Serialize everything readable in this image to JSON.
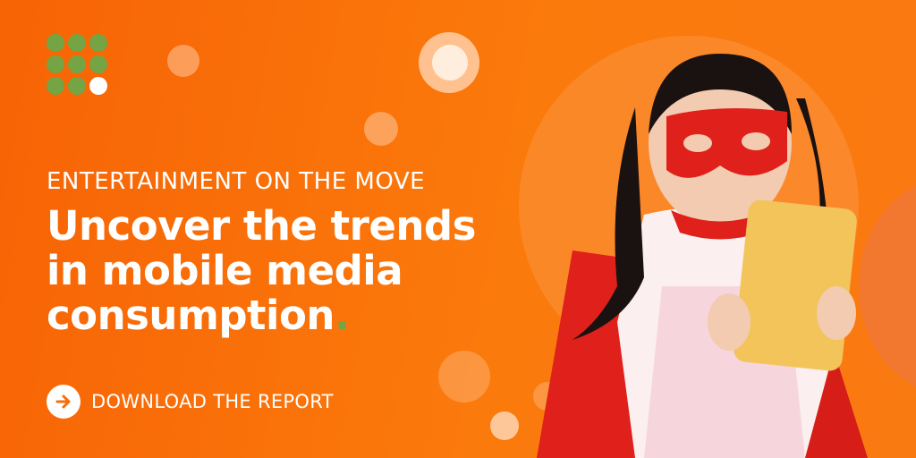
{
  "kicker": "ENTERTAINMENT ON THE MOVE",
  "headline": {
    "line1": "Uncover the trends",
    "line2": "in mobile media",
    "line3": "consumption",
    "period": "."
  },
  "cta": {
    "label": "DOWNLOAD THE REPORT",
    "icon": "arrow-right-circle-icon"
  },
  "logo": {
    "icon": "dot-grid-logo"
  },
  "photo": {
    "subject": "girl-in-superhero-mask-with-phone"
  },
  "colors": {
    "background": "#f86e08",
    "accent_green": "#74a443",
    "text": "#ffffff",
    "phone": "#f2c45a",
    "cape": "#e0201b"
  }
}
